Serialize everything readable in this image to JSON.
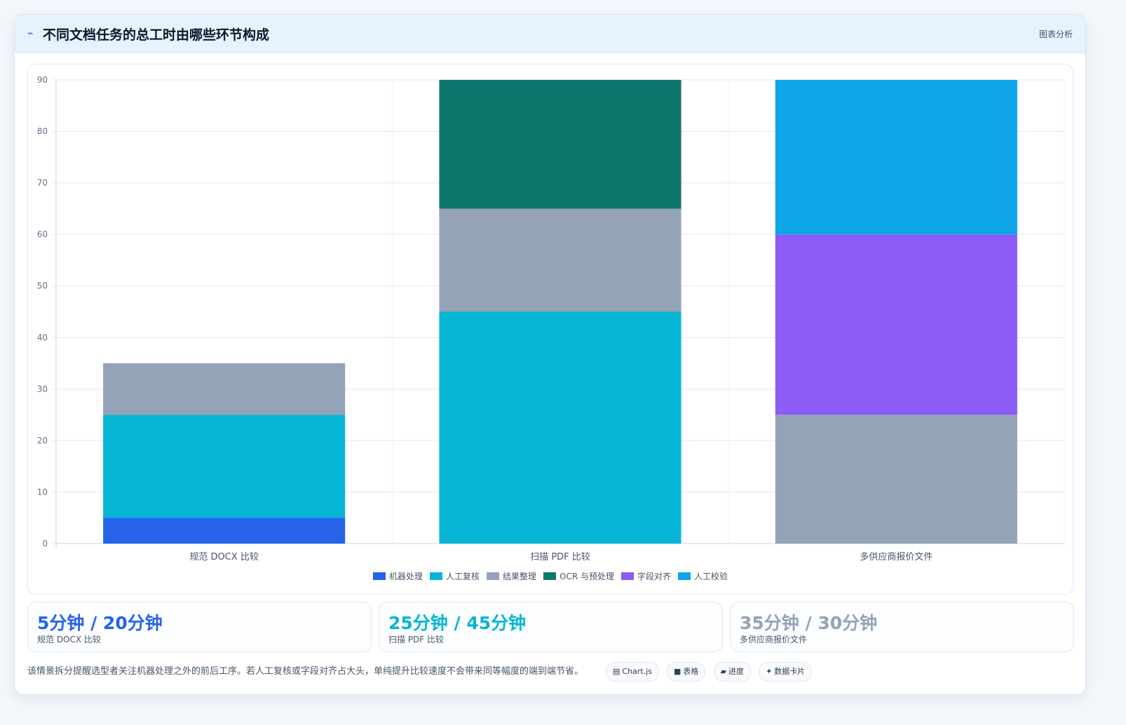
{
  "header": {
    "icon": "chart-line-icon",
    "title": "不同文档任务的总工时由哪些环节构成",
    "tag": "图表分析"
  },
  "chart_data": {
    "type": "bar",
    "stacked": true,
    "title": "",
    "xlabel": "",
    "ylabel": "",
    "ylim": [
      0,
      90
    ],
    "yticks": [
      "0",
      "10",
      "20",
      "30",
      "40",
      "50",
      "60",
      "70",
      "80",
      "90"
    ],
    "grid": true,
    "legend_position": "bottom",
    "categories": [
      "规范 DOCX 比较",
      "扫描 PDF 比较",
      "多供应商报价文件"
    ],
    "series": [
      {
        "name": "机器处理",
        "color": "#2563eb",
        "values": [
          5,
          0,
          0
        ]
      },
      {
        "name": "人工复核",
        "color": "#06b6d4",
        "values": [
          20,
          45,
          0
        ]
      },
      {
        "name": "结果整理",
        "color": "#94a3b8",
        "values": [
          10,
          20,
          25
        ]
      },
      {
        "name": "OCR 与预处理",
        "color": "#0f766e",
        "values": [
          0,
          25,
          0
        ]
      },
      {
        "name": "字段对齐",
        "color": "#8b5cf6",
        "values": [
          0,
          0,
          35
        ]
      },
      {
        "name": "人工校验",
        "color": "#0ea5e9",
        "values": [
          0,
          0,
          30
        ]
      }
    ]
  },
  "stats": [
    {
      "value": "5分钟 / 20分钟",
      "label": "规范 DOCX 比较",
      "color": "#2563eb"
    },
    {
      "value": "25分钟 / 45分钟",
      "label": "扫描 PDF 比较",
      "color": "#06b6d4"
    },
    {
      "value": "35分钟 / 30分钟",
      "label": "多供应商报价文件",
      "color": "#94a3b8"
    }
  ],
  "footer": {
    "text": "该情景拆分提醒选型者关注机器处理之外的前后工序。若人工复核或字段对齐占大头，单纯提升比较速度不会带来同等幅度的端到端节省。",
    "pills": [
      {
        "icon": "chart-icon",
        "glyph": "▤",
        "label": "Chart.js"
      },
      {
        "icon": "table-icon",
        "glyph": "■",
        "label": "表格"
      },
      {
        "icon": "progress-icon",
        "glyph": "▰",
        "label": "进度"
      },
      {
        "icon": "sparkle-icon",
        "glyph": "✦",
        "label": "数据卡片"
      }
    ]
  }
}
